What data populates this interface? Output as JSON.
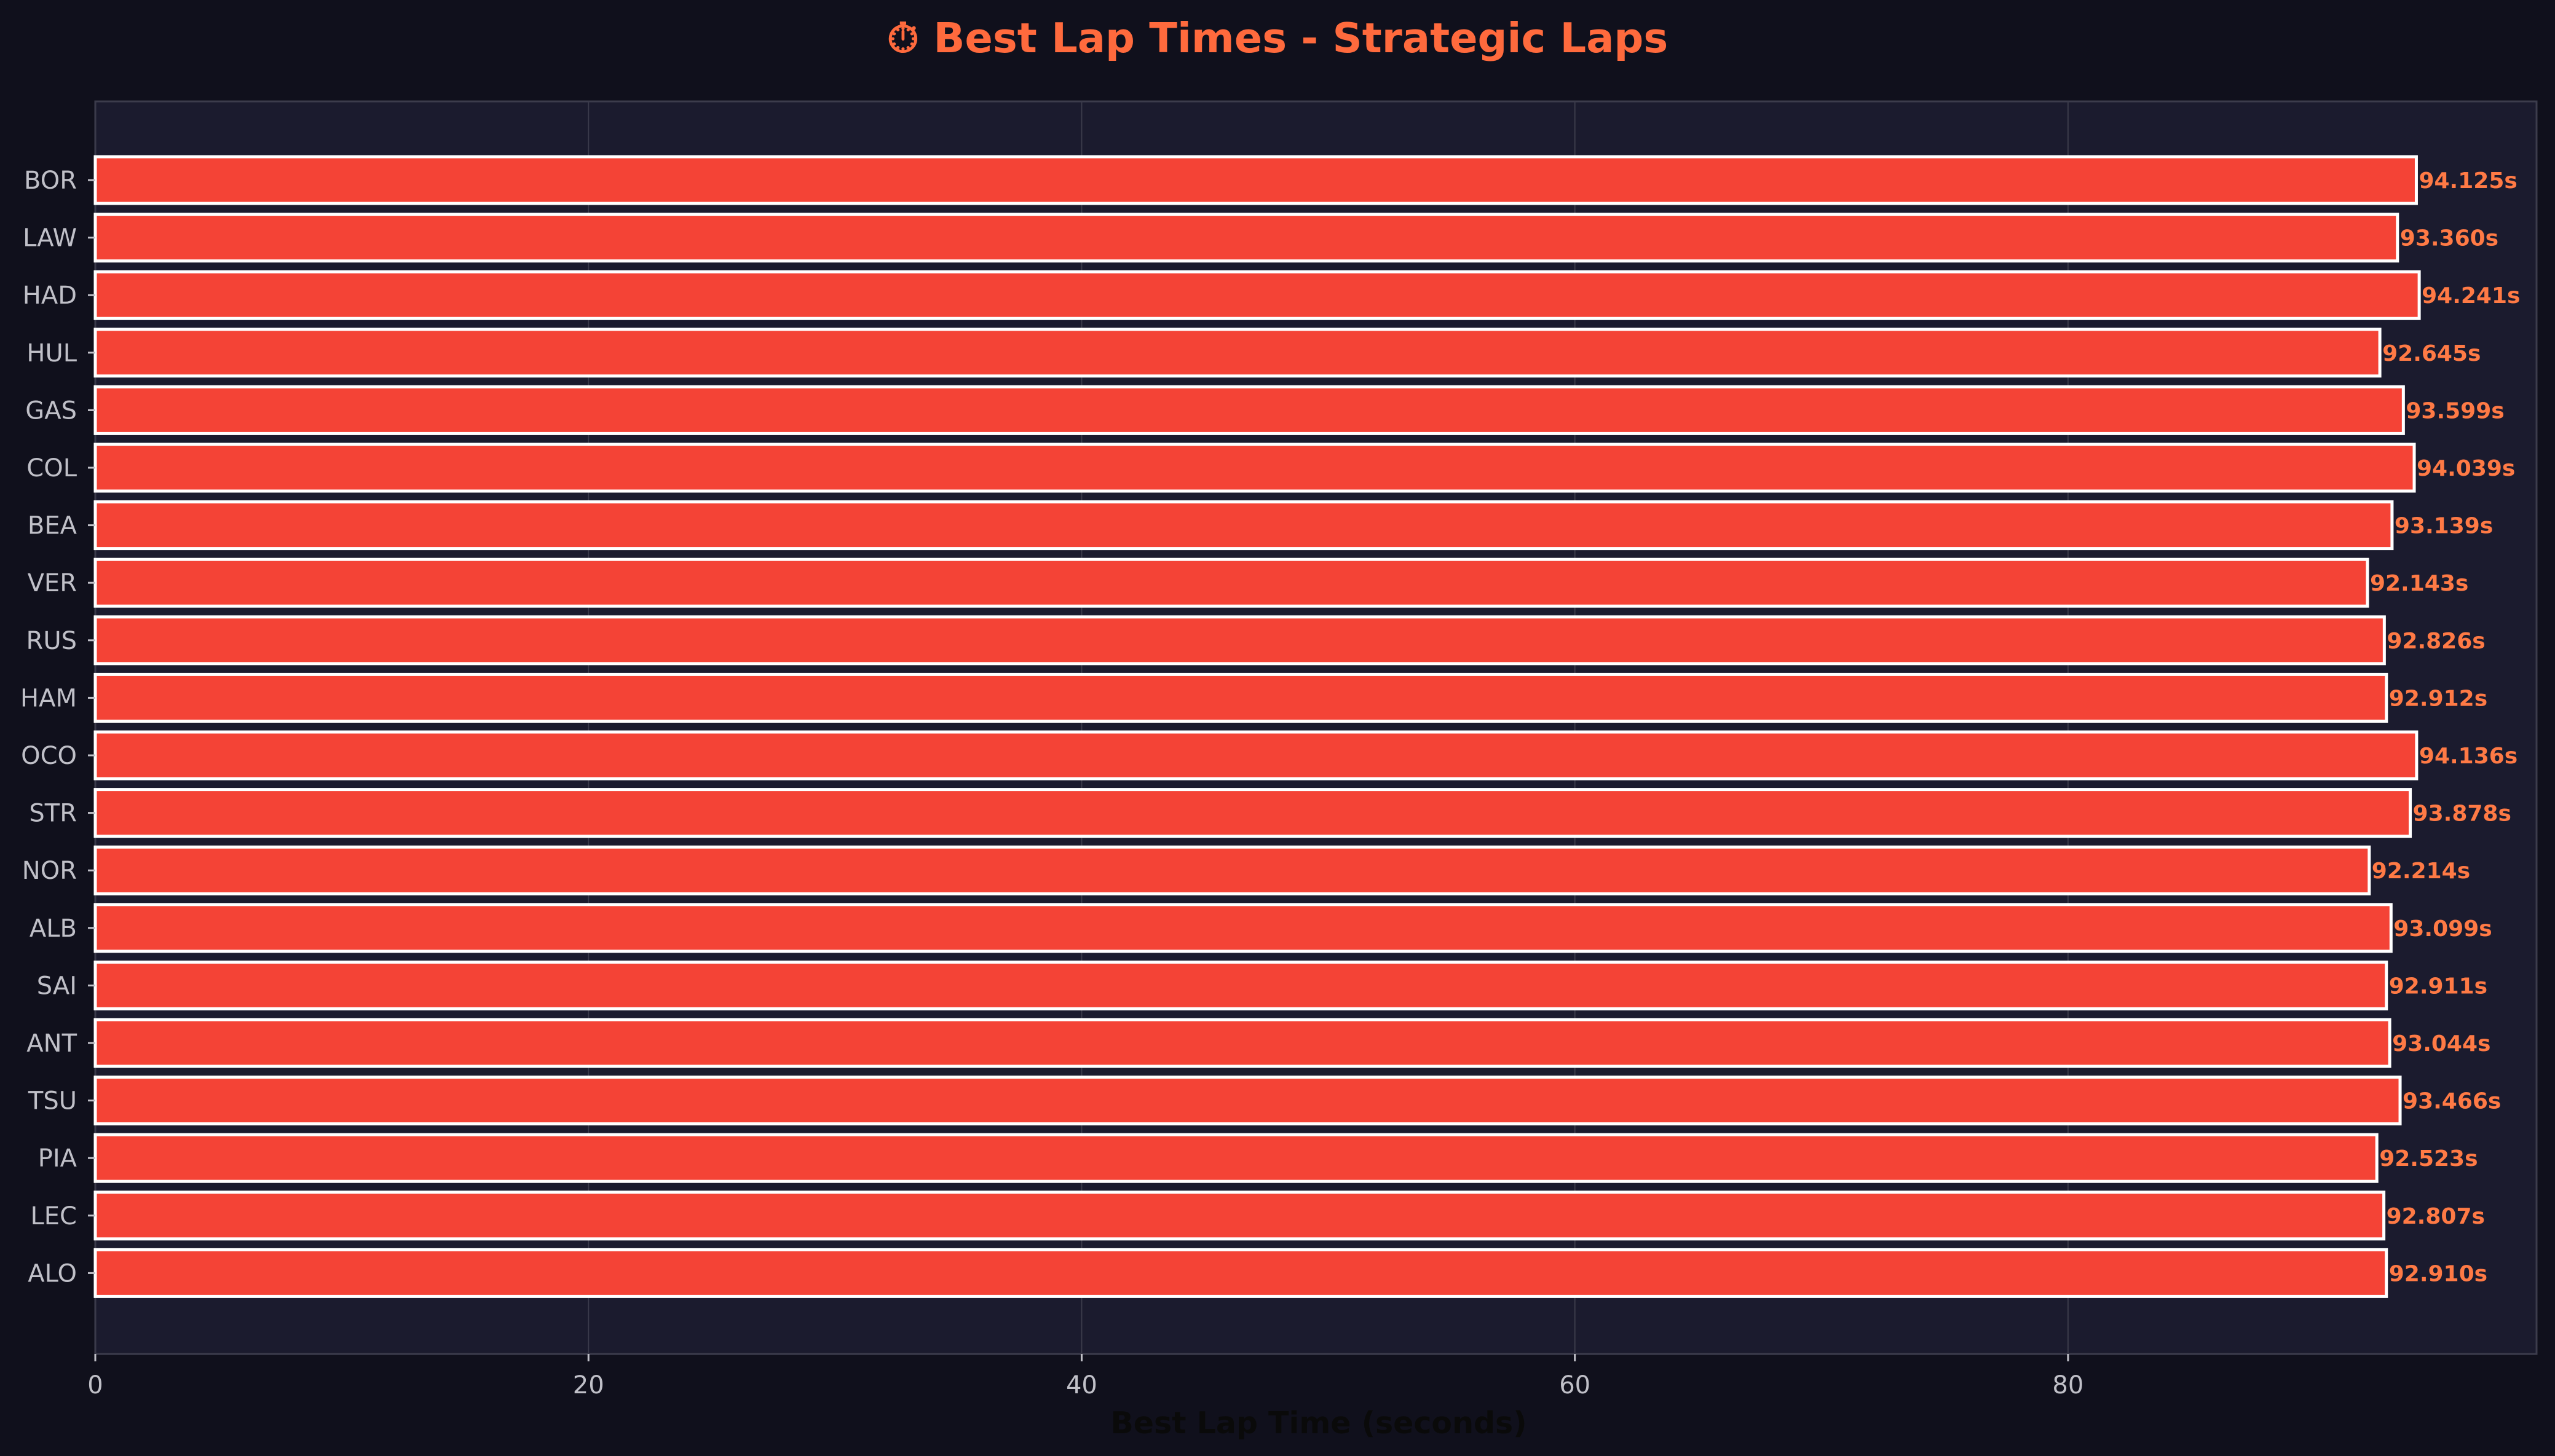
{
  "chart_data": {
    "type": "bar",
    "orientation": "horizontal",
    "title": "⏱ Best Lap Times - Strategic Laps",
    "xlabel": "Best Lap Time (seconds)",
    "ylabel": "",
    "xlim": [
      0,
      99
    ],
    "xticks": [
      0,
      20,
      40,
      60,
      80
    ],
    "grid": true,
    "categories": [
      "BOR",
      "LAW",
      "HAD",
      "HUL",
      "GAS",
      "COL",
      "BEA",
      "VER",
      "RUS",
      "HAM",
      "OCO",
      "STR",
      "NOR",
      "ALB",
      "SAI",
      "ANT",
      "TSU",
      "PIA",
      "LEC",
      "ALO"
    ],
    "values": [
      94.125,
      93.36,
      94.241,
      92.645,
      93.599,
      94.039,
      93.139,
      92.143,
      92.826,
      92.912,
      94.136,
      93.878,
      92.214,
      93.099,
      92.911,
      93.044,
      93.466,
      92.523,
      92.807,
      92.91
    ],
    "value_labels": [
      "94.125s",
      "93.360s",
      "94.241s",
      "92.645s",
      "93.599s",
      "94.039s",
      "93.139s",
      "92.143s",
      "92.826s",
      "92.912s",
      "94.136s",
      "93.878s",
      "92.214s",
      "93.099s",
      "92.911s",
      "93.044s",
      "93.466s",
      "92.523s",
      "92.807s",
      "92.910s"
    ],
    "colors": {
      "background": "#10101c",
      "plot_background": "#1b1b2e",
      "bar_fill": "#f44336",
      "bar_edge": "#ffffff",
      "value_label": "#ff7a45",
      "title": "#ff6a3d",
      "tick_label": "#c0c0c8",
      "axis_label": "#0a0a0a",
      "grid": "#3a3a4a",
      "spine": "#3c3c4c"
    }
  }
}
